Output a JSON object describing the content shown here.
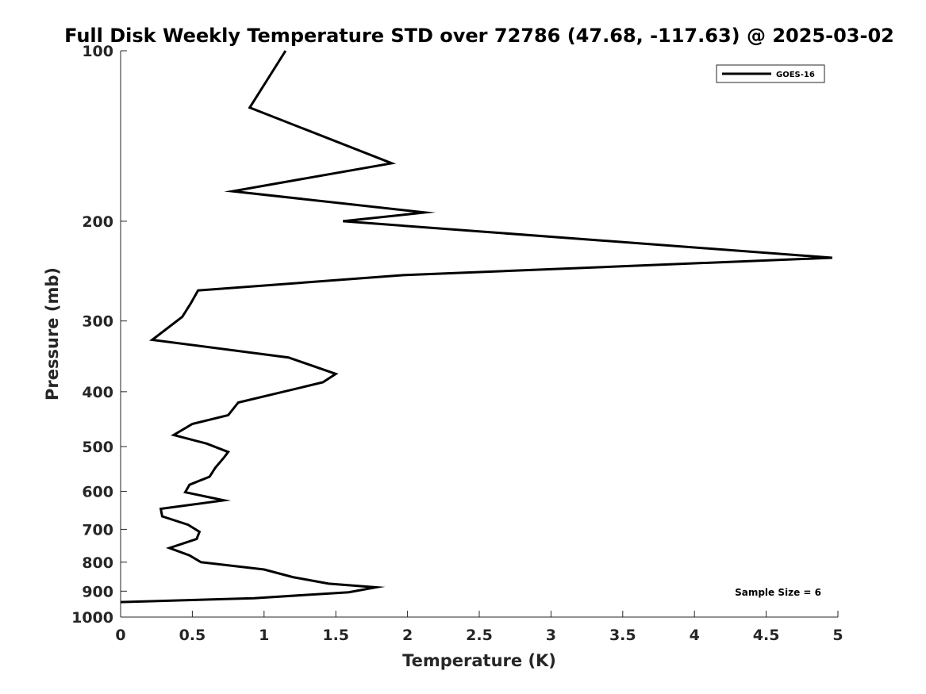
{
  "chart_data": {
    "type": "line",
    "title": "Full Disk Weekly Temperature STD over 72786 (47.68, -117.63) @ 2025-03-02",
    "xlabel": "Temperature (K)",
    "ylabel": "Pressure (mb)",
    "xlim": [
      0,
      5
    ],
    "ylim": [
      100,
      1000
    ],
    "y_scale": "log",
    "y_reversed": true,
    "x_ticks": [
      0,
      0.5,
      1,
      1.5,
      2,
      2.5,
      3,
      3.5,
      4,
      4.5,
      5
    ],
    "x_tick_labels": [
      "0",
      "0.5",
      "1",
      "1.5",
      "2",
      "2.5",
      "3",
      "3.5",
      "4",
      "4.5",
      "5"
    ],
    "y_ticks": [
      100,
      200,
      300,
      400,
      500,
      600,
      700,
      800,
      900,
      1000
    ],
    "y_tick_labels": [
      "100",
      "200",
      "300",
      "400",
      "500",
      "600",
      "700",
      "800",
      "900",
      "1000"
    ],
    "grid": false,
    "legend_position": "top-right",
    "annotation": "Sample Size = 6",
    "series": [
      {
        "name": "GOES-16",
        "color": "#000000",
        "x": [
          1.15,
          0.9,
          1.89,
          0.78,
          2.12,
          1.55,
          4.96,
          1.97,
          0.54,
          0.49,
          0.43,
          0.22,
          1.17,
          1.5,
          1.41,
          1.12,
          0.82,
          0.75,
          0.5,
          0.37,
          0.6,
          0.75,
          0.72,
          0.66,
          0.62,
          0.48,
          0.45,
          0.72,
          0.28,
          0.29,
          0.47,
          0.55,
          0.53,
          0.34,
          0.48,
          0.56,
          1.0,
          1.2,
          1.45,
          1.78,
          1.59,
          0.93,
          0.0
        ],
        "y": [
          100,
          126,
          158,
          177,
          193,
          200,
          232,
          249,
          265,
          279,
          295,
          324,
          348,
          372,
          385,
          401,
          418,
          440,
          456,
          477,
          494,
          511,
          523,
          545,
          565,
          584,
          602,
          622,
          644,
          664,
          687,
          707,
          728,
          755,
          778,
          800,
          824,
          850,
          873,
          886,
          904,
          926,
          941
        ]
      }
    ]
  }
}
